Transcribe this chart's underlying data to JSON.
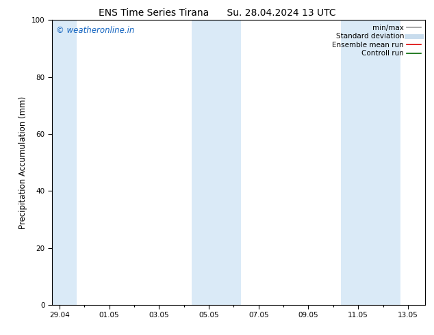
{
  "title1": "ENS Time Series Tirana",
  "title2": "Su. 28.04.2024 13 UTC",
  "ylabel": "Precipitation Accumulation (mm)",
  "ylim": [
    0,
    100
  ],
  "yticks": [
    0,
    20,
    40,
    60,
    80,
    100
  ],
  "x_tick_labels": [
    "29.04",
    "01.05",
    "03.05",
    "05.05",
    "07.05",
    "09.05",
    "11.05",
    "13.05"
  ],
  "x_tick_days": [
    0,
    2,
    4,
    6,
    8,
    10,
    12,
    14
  ],
  "xlim": [
    -0.3,
    14.7
  ],
  "shaded_bands": [
    {
      "x_start": -0.3,
      "x_end": 0.7
    },
    {
      "x_start": 5.3,
      "x_end": 7.3
    },
    {
      "x_start": 11.3,
      "x_end": 13.7
    }
  ],
  "band_color": "#daeaf7",
  "watermark_text": "© weatheronline.in",
  "watermark_color": "#1565c0",
  "legend_items": [
    {
      "label": "min/max",
      "color": "#999999",
      "lw": 1.2
    },
    {
      "label": "Standard deviation",
      "color": "#c8dced",
      "lw": 5
    },
    {
      "label": "Ensemble mean run",
      "color": "#dd0000",
      "lw": 1.2
    },
    {
      "label": "Controll run",
      "color": "#006600",
      "lw": 1.2
    }
  ],
  "background_color": "#ffffff",
  "title_fontsize": 10,
  "tick_fontsize": 7.5,
  "ylabel_fontsize": 8.5,
  "watermark_fontsize": 8.5,
  "legend_fontsize": 7.5
}
